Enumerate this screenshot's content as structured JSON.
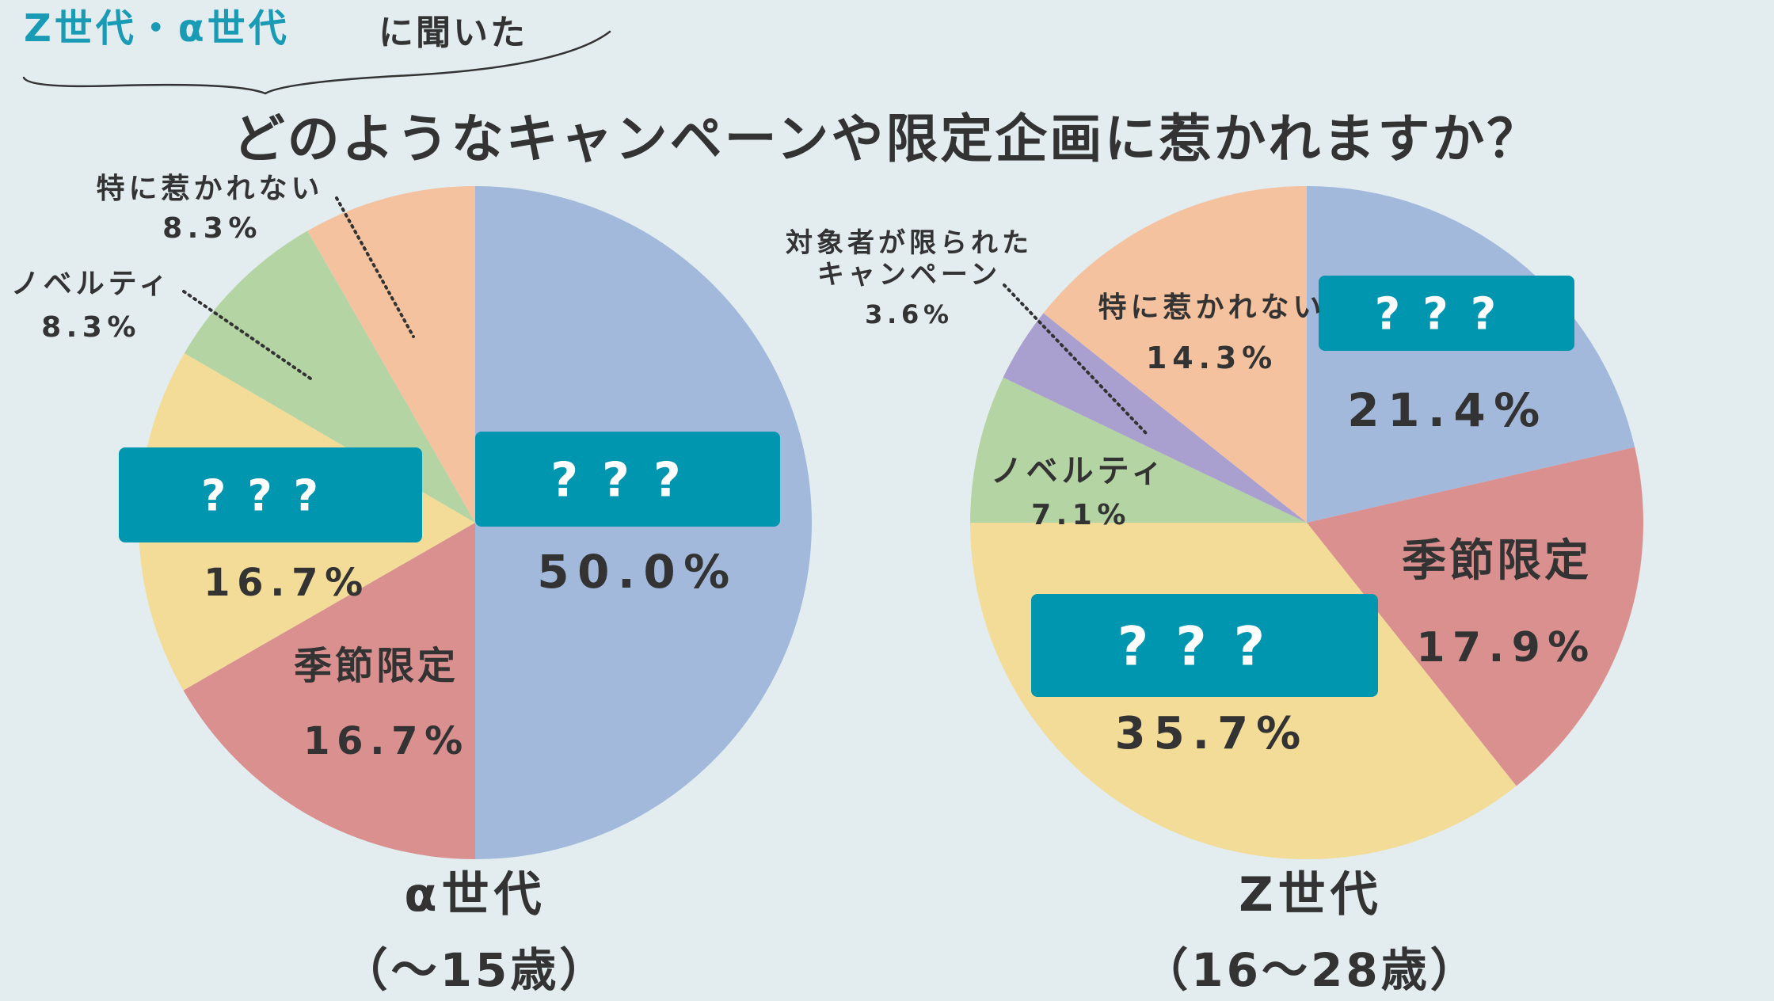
{
  "header": {
    "tag_highlight": "Z世代・α世代",
    "tag_suffix": "に聞いた",
    "title": "どのようなキャンペーンや限定企画に惹かれますか？"
  },
  "colors": {
    "background": "#e3edf0",
    "text": "#333333",
    "accent": "#1a9bb5",
    "mask_box": "#0096b0",
    "blue": "#a2b9dc",
    "red": "#db9090",
    "yellow": "#f2dc97",
    "green": "#b5d4a4",
    "orange": "#f4c29f",
    "purple": "#aaa0cf"
  },
  "chart_data": [
    {
      "type": "pie",
      "title": "α世代",
      "subtitle": "（〜15歳）",
      "slices": [
        {
          "label": "???",
          "label_masked": true,
          "value": 50.0,
          "value_text": "50.0%",
          "color": "blue"
        },
        {
          "label": "季節限定",
          "label_masked": false,
          "value": 16.7,
          "value_text": "16.7%",
          "color": "red"
        },
        {
          "label": "???",
          "label_masked": true,
          "value": 16.7,
          "value_text": "16.7%",
          "color": "yellow"
        },
        {
          "label": "ノベルティ",
          "label_masked": false,
          "value": 8.3,
          "value_text": "8.3%",
          "color": "green"
        },
        {
          "label": "特に惹かれない",
          "label_masked": false,
          "value": 8.3,
          "value_text": "8.3%",
          "color": "orange"
        }
      ]
    },
    {
      "type": "pie",
      "title": "Z世代",
      "subtitle": "（16〜28歳）",
      "slices": [
        {
          "label": "???",
          "label_masked": true,
          "value": 21.4,
          "value_text": "21.4%",
          "color": "blue"
        },
        {
          "label": "季節限定",
          "label_masked": false,
          "value": 17.9,
          "value_text": "17.9%",
          "color": "red"
        },
        {
          "label": "???",
          "label_masked": true,
          "value": 35.7,
          "value_text": "35.7%",
          "color": "yellow"
        },
        {
          "label": "ノベルティ",
          "label_masked": false,
          "value": 7.1,
          "value_text": "7.1%",
          "color": "green"
        },
        {
          "label": "対象者が限られたキャンペーン",
          "label_lines": [
            "対象者が限られた",
            "キャンペーン"
          ],
          "label_masked": false,
          "value": 3.6,
          "value_text": "3.6%",
          "color": "purple"
        },
        {
          "label": "特に惹かれない",
          "label_masked": false,
          "value": 14.3,
          "value_text": "14.3%",
          "color": "orange"
        }
      ]
    }
  ]
}
